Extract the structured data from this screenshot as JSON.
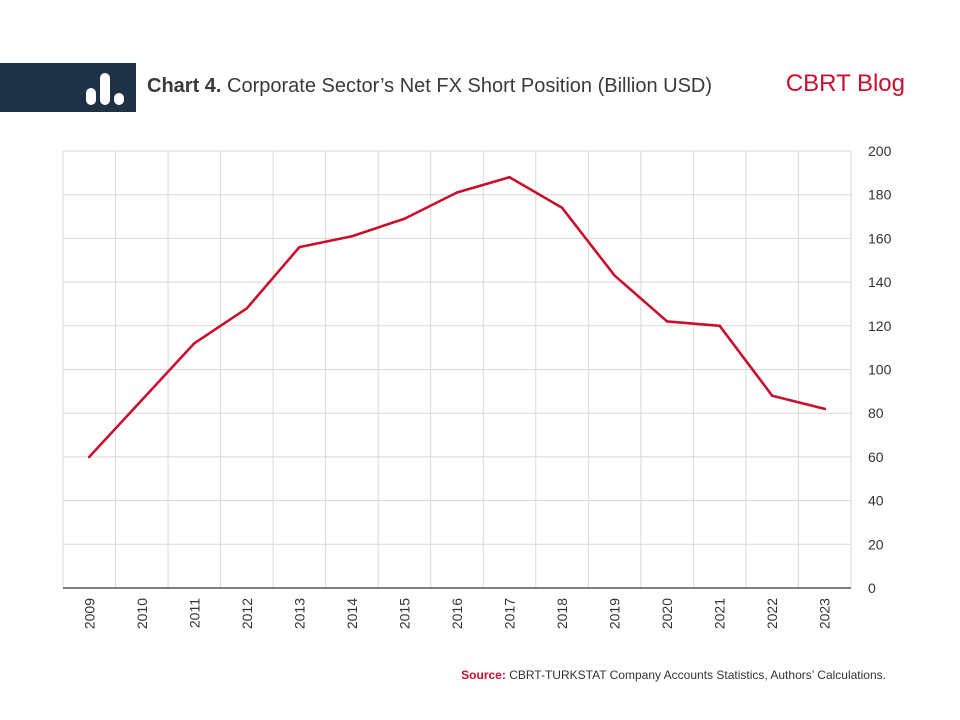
{
  "header": {
    "title_bold": "Chart 4.",
    "title_rest": "Corporate Sector’s Net FX Short Position (Billion USD)",
    "brand": "CBRT Blog"
  },
  "footer": {
    "source_label": "Source:",
    "source_text": "CBRT-TURKSTAT Company Accounts Statistics, Authors’ Calculations."
  },
  "colors": {
    "line": "#c8102e",
    "band": "#1f3145",
    "grid": "#d9d9d9"
  },
  "icons": {
    "logo": "bar-chart-icon"
  },
  "chart_data": {
    "type": "line",
    "categories": [
      "2009",
      "2010",
      "2011",
      "2012",
      "2013",
      "2014",
      "2015",
      "2016",
      "2017",
      "2018",
      "2019",
      "2020",
      "2021",
      "2022",
      "2023"
    ],
    "series": [
      {
        "values": [
          60,
          86,
          112,
          128,
          156,
          161,
          169,
          181,
          188,
          174,
          143,
          122,
          120,
          88,
          82
        ]
      }
    ],
    "ylim": [
      0,
      200
    ],
    "yticks": [
      0,
      20,
      40,
      60,
      80,
      100,
      120,
      140,
      160,
      180,
      200
    ],
    "y_axis_side": "right",
    "grid": true,
    "xlabel": "",
    "ylabel": ""
  }
}
